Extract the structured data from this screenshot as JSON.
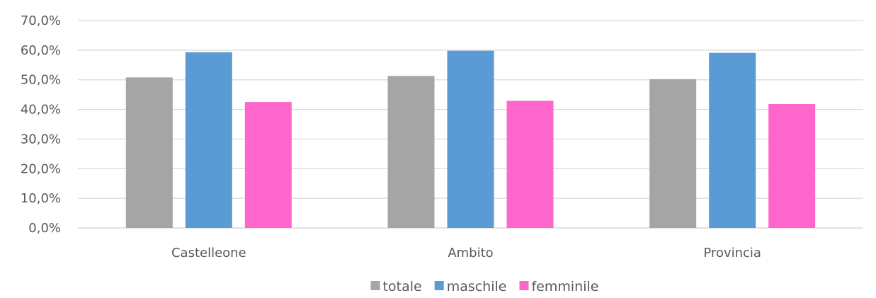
{
  "chart_data": {
    "type": "bar",
    "categories": [
      "Castelleone",
      "Ambito",
      "Provincia"
    ],
    "series": [
      {
        "name": "totale",
        "color": "#a5a5a5",
        "values": [
          50.8,
          51.3,
          50.2
        ]
      },
      {
        "name": "maschile",
        "color": "#5b9bd5",
        "values": [
          59.3,
          59.8,
          59.1
        ]
      },
      {
        "name": "femminile",
        "color": "#ff66cc",
        "values": [
          42.5,
          42.9,
          41.8
        ]
      }
    ],
    "ylim": [
      0,
      70
    ],
    "yticks": [
      0,
      10,
      20,
      30,
      40,
      50,
      60,
      70
    ],
    "ytick_labels": [
      "0,0%",
      "10,0%",
      "20,0%",
      "30,0%",
      "40,0%",
      "50,0%",
      "60,0%",
      "70,0%"
    ],
    "grid": true,
    "legend_position": "bottom",
    "title": "",
    "xlabel": "",
    "ylabel": ""
  }
}
